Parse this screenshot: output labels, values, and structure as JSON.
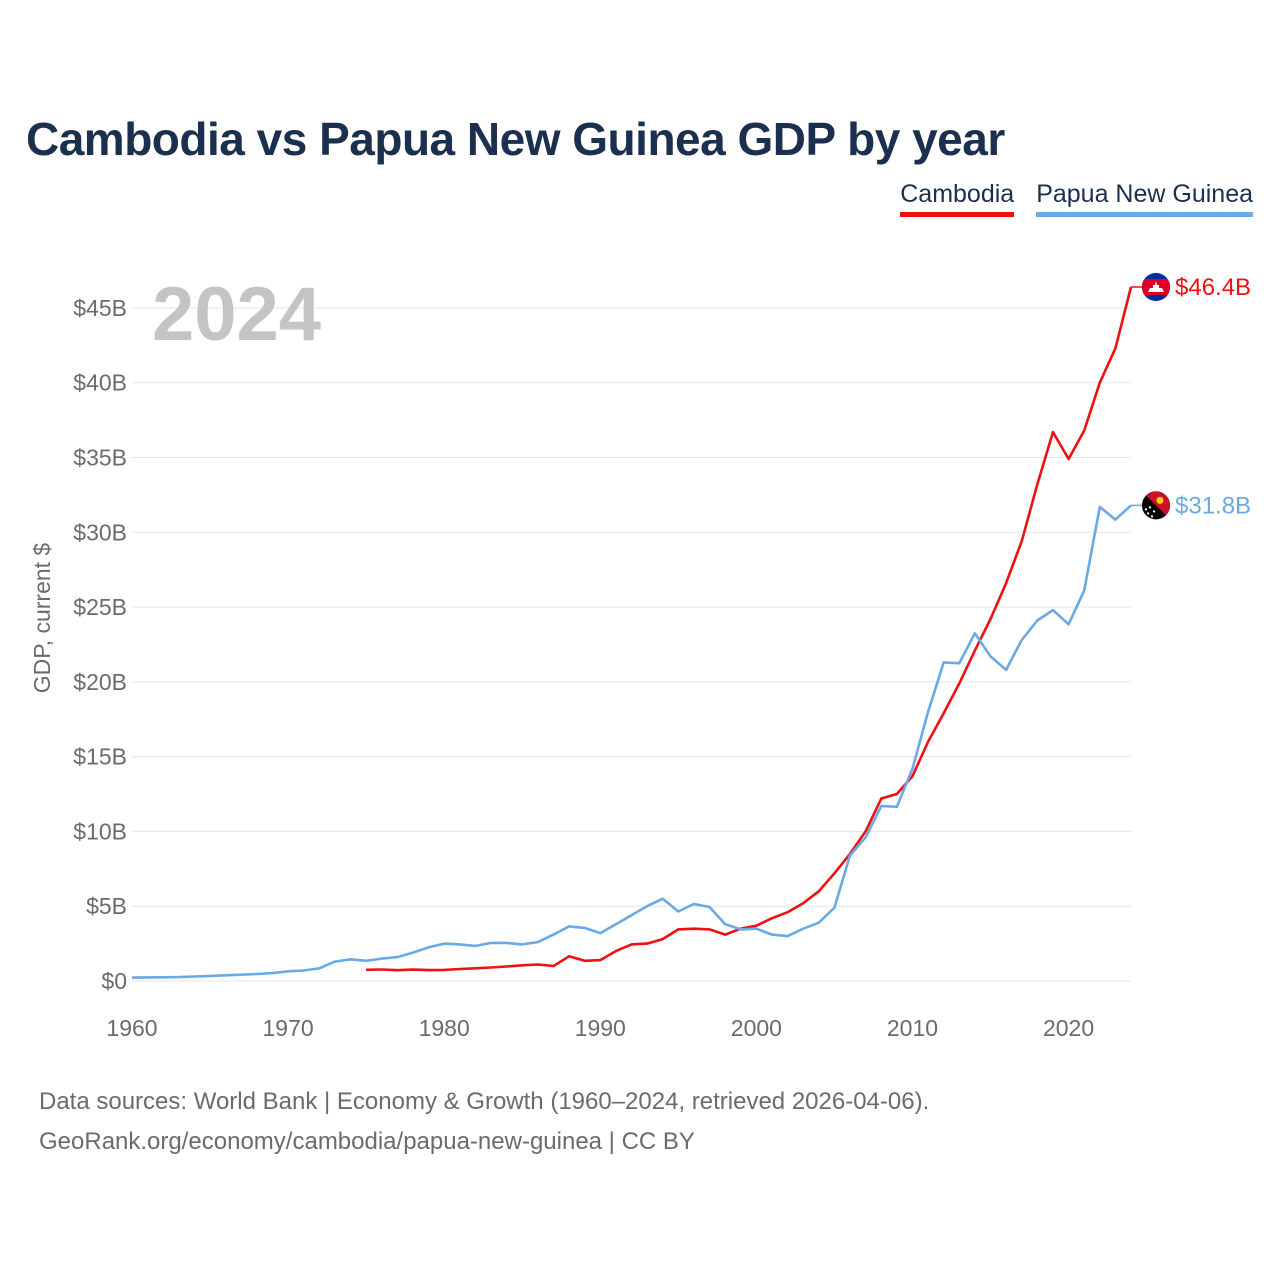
{
  "title": "Cambodia vs Papua New Guinea GDP by year",
  "legend": {
    "cambodia": "Cambodia",
    "png": "Papua New Guinea"
  },
  "year_watermark": "2024",
  "footer": {
    "line1": "Data sources: World Bank | Economy & Growth (1960–2024, retrieved 2026-04-06).",
    "line2": "GeoRank.org/economy/cambodia/papua-new-guinea | CC BY"
  },
  "colors": {
    "cambodia": "#ee1111",
    "png": "#6aaae4",
    "grid": "#e6e6e6",
    "axis_text": "#6b6b6b",
    "title": "#1b2f4f",
    "watermark": "#c4c4c4"
  },
  "chart_data": {
    "type": "line",
    "title": "Cambodia vs Papua New Guinea GDP by year",
    "xlabel": "",
    "ylabel": "GDP, current $",
    "xlim": [
      1960,
      2024
    ],
    "ylim": [
      0,
      46.4
    ],
    "y_unit": "billion USD",
    "x_ticks": [
      1960,
      1970,
      1980,
      1990,
      2000,
      2010,
      2020
    ],
    "y_ticks": [
      0,
      5,
      10,
      15,
      20,
      25,
      30,
      35,
      40,
      45
    ],
    "y_tick_labels": [
      "$0",
      "$5B",
      "$10B",
      "$15B",
      "$20B",
      "$25B",
      "$30B",
      "$35B",
      "$40B",
      "$45B"
    ],
    "series": [
      {
        "name": "Cambodia",
        "key": "cambodia",
        "end_label": "$46.4B",
        "flag": "cambodia-flag",
        "points": [
          [
            1975,
            0.75
          ],
          [
            1976,
            0.77
          ],
          [
            1977,
            0.72
          ],
          [
            1978,
            0.76
          ],
          [
            1979,
            0.73
          ],
          [
            1980,
            0.74
          ],
          [
            1981,
            0.8
          ],
          [
            1982,
            0.85
          ],
          [
            1983,
            0.9
          ],
          [
            1984,
            0.97
          ],
          [
            1985,
            1.05
          ],
          [
            1986,
            1.1
          ],
          [
            1987,
            1.0
          ],
          [
            1988,
            1.65
          ],
          [
            1989,
            1.35
          ],
          [
            1990,
            1.4
          ],
          [
            1991,
            2.0
          ],
          [
            1992,
            2.45
          ],
          [
            1993,
            2.5
          ],
          [
            1994,
            2.8
          ],
          [
            1995,
            3.45
          ],
          [
            1996,
            3.5
          ],
          [
            1997,
            3.45
          ],
          [
            1998,
            3.1
          ],
          [
            1999,
            3.5
          ],
          [
            2000,
            3.7
          ],
          [
            2001,
            4.2
          ],
          [
            2002,
            4.6
          ],
          [
            2003,
            5.2
          ],
          [
            2004,
            6.0
          ],
          [
            2005,
            7.2
          ],
          [
            2006,
            8.5
          ],
          [
            2007,
            10.0
          ],
          [
            2008,
            12.2
          ],
          [
            2009,
            12.5
          ],
          [
            2010,
            13.7
          ],
          [
            2011,
            16.0
          ],
          [
            2012,
            17.9
          ],
          [
            2013,
            19.9
          ],
          [
            2014,
            22.1
          ],
          [
            2015,
            24.2
          ],
          [
            2016,
            26.6
          ],
          [
            2017,
            29.4
          ],
          [
            2018,
            33.2
          ],
          [
            2019,
            36.7
          ],
          [
            2020,
            34.9
          ],
          [
            2021,
            36.8
          ],
          [
            2022,
            40.0
          ],
          [
            2023,
            42.3
          ],
          [
            2024,
            46.4
          ]
        ]
      },
      {
        "name": "Papua New Guinea",
        "key": "png",
        "end_label": "$31.8B",
        "flag": "papua-new-guinea-flag",
        "points": [
          [
            1960,
            0.23
          ],
          [
            1961,
            0.24
          ],
          [
            1962,
            0.25
          ],
          [
            1963,
            0.26
          ],
          [
            1964,
            0.3
          ],
          [
            1965,
            0.34
          ],
          [
            1966,
            0.38
          ],
          [
            1967,
            0.42
          ],
          [
            1968,
            0.47
          ],
          [
            1969,
            0.53
          ],
          [
            1970,
            0.65
          ],
          [
            1971,
            0.7
          ],
          [
            1972,
            0.85
          ],
          [
            1973,
            1.3
          ],
          [
            1974,
            1.45
          ],
          [
            1975,
            1.35
          ],
          [
            1976,
            1.5
          ],
          [
            1977,
            1.6
          ],
          [
            1978,
            1.9
          ],
          [
            1979,
            2.25
          ],
          [
            1980,
            2.5
          ],
          [
            1981,
            2.45
          ],
          [
            1982,
            2.35
          ],
          [
            1983,
            2.55
          ],
          [
            1984,
            2.55
          ],
          [
            1985,
            2.45
          ],
          [
            1986,
            2.6
          ],
          [
            1987,
            3.1
          ],
          [
            1988,
            3.65
          ],
          [
            1989,
            3.55
          ],
          [
            1990,
            3.2
          ],
          [
            1991,
            3.8
          ],
          [
            1992,
            4.4
          ],
          [
            1993,
            5.0
          ],
          [
            1994,
            5.5
          ],
          [
            1995,
            4.65
          ],
          [
            1996,
            5.15
          ],
          [
            1997,
            4.95
          ],
          [
            1998,
            3.8
          ],
          [
            1999,
            3.45
          ],
          [
            2000,
            3.5
          ],
          [
            2001,
            3.1
          ],
          [
            2002,
            3.0
          ],
          [
            2003,
            3.5
          ],
          [
            2004,
            3.9
          ],
          [
            2005,
            4.9
          ],
          [
            2006,
            8.4
          ],
          [
            2007,
            9.6
          ],
          [
            2008,
            11.7
          ],
          [
            2009,
            11.65
          ],
          [
            2010,
            14.2
          ],
          [
            2011,
            18.0
          ],
          [
            2012,
            21.3
          ],
          [
            2013,
            21.25
          ],
          [
            2014,
            23.25
          ],
          [
            2015,
            21.7
          ],
          [
            2016,
            20.8
          ],
          [
            2017,
            22.8
          ],
          [
            2018,
            24.1
          ],
          [
            2019,
            24.8
          ],
          [
            2020,
            23.85
          ],
          [
            2021,
            26.1
          ],
          [
            2022,
            31.7
          ],
          [
            2023,
            30.85
          ],
          [
            2024,
            31.8
          ]
        ]
      }
    ]
  }
}
